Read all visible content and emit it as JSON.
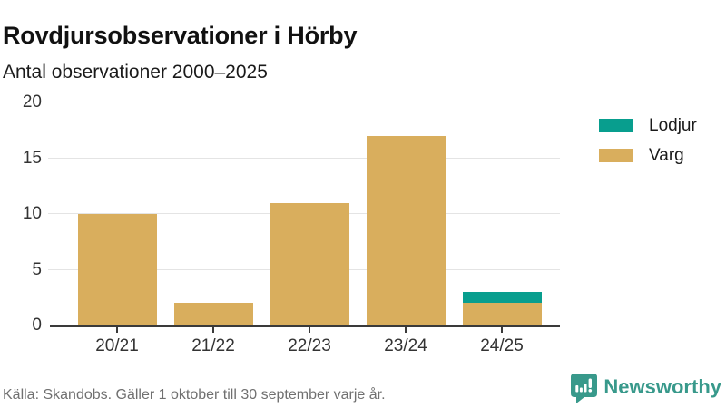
{
  "chart_data": {
    "type": "bar",
    "stacked": true,
    "title": "Rovdjursobservationer i Hörby",
    "subtitle": "Antal observationer 2000–2025",
    "categories": [
      "20/21",
      "21/22",
      "22/23",
      "23/24",
      "24/25"
    ],
    "series": [
      {
        "name": "Lodjur",
        "color": "#089e8e",
        "values": [
          0,
          0,
          0,
          0,
          1
        ]
      },
      {
        "name": "Varg",
        "color": "#d9ae5d",
        "values": [
          10,
          2,
          11,
          17,
          2
        ]
      }
    ],
    "stack_order_bottom_to_top": [
      "Varg",
      "Lodjur"
    ],
    "ylim": [
      0,
      20
    ],
    "yticks": [
      0,
      5,
      10,
      15,
      20
    ],
    "grid": true,
    "legend_position": "right"
  },
  "footer": {
    "source": "Källa: Skandobs. Gäller 1 oktober till 30 september varje år.",
    "brand": "Newsworthy"
  },
  "colors": {
    "lodjur": "#089e8e",
    "varg": "#d9ae5d",
    "brand_teal": "#38998b",
    "axis_line": "#3a3a3a",
    "gridline": "#e4e4e4",
    "title_text": "#111111",
    "axis_text": "#333333",
    "footer_text": "#707070"
  }
}
